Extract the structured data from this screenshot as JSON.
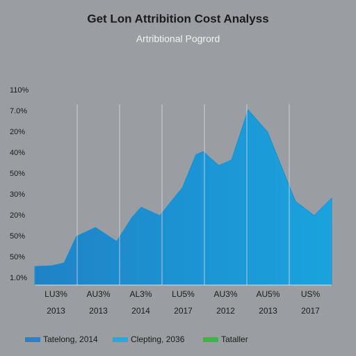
{
  "chart_data": {
    "type": "area",
    "title": "Get Lon Attribition Cost Analyss",
    "subtitle": "Artribtional Pogrord",
    "y_axis_labels": [
      "110%",
      "7.0%",
      "20%",
      "40%",
      "50%",
      "30%",
      "20%",
      "50%",
      "50%",
      "1.0%"
    ],
    "categories": [
      [
        "LU3%",
        "2013"
      ],
      [
        "AU3%",
        "2013"
      ],
      [
        "AL3%",
        "2014"
      ],
      [
        "LU5%",
        "2017"
      ],
      [
        "AU3%",
        "2012"
      ],
      [
        "AU5%",
        "2013"
      ],
      [
        "US%",
        "2017"
      ]
    ],
    "xlim": [
      0,
      7
    ],
    "ylim": [
      0,
      100
    ],
    "series": [
      {
        "name": "Tatelong, 2014",
        "color": "#1b8fd2",
        "x": [
          0,
          0.41,
          0.69,
          0.98,
          1.43,
          1.93,
          2.3,
          2.51,
          2.95,
          3.25,
          3.48,
          3.8,
          3.97,
          4.34,
          4.64,
          5.03,
          5.49,
          5.82,
          6.15,
          6.59,
          7
        ],
        "values": [
          9.6,
          10,
          11.4,
          25,
          29.6,
          22.5,
          35,
          40,
          35.7,
          43.9,
          50,
          67,
          68.6,
          61.4,
          64.3,
          90,
          78.6,
          60.7,
          42.9,
          35.7,
          44.6
        ]
      }
    ],
    "legend": [
      {
        "name": "Tatelong, 2014",
        "color": "#2f7fc6"
      },
      {
        "name": "Clepting, 2036",
        "color": "#29a8e0"
      },
      {
        "name": "Tataller",
        "color": "#3bb54a"
      }
    ]
  }
}
